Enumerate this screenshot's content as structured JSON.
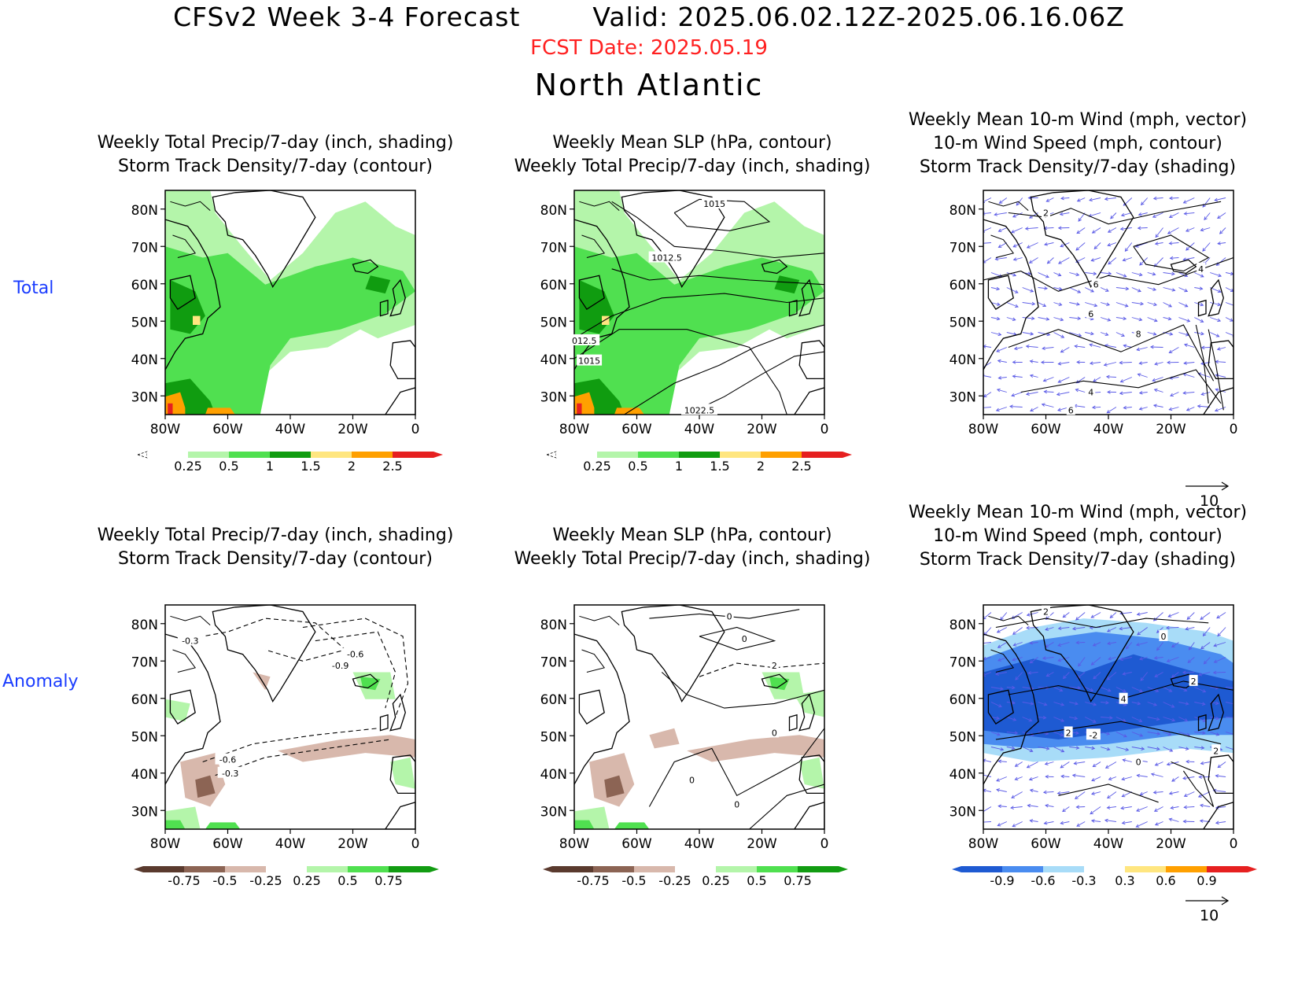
{
  "header": {
    "title": "CFSv2 Week 3-4 Forecast        Valid: 2025.06.02.12Z-2025.06.16.06Z",
    "fcst_date": "FCST Date: 2025.05.19",
    "region": "North Atlantic"
  },
  "row_labels": [
    "Total",
    "Anomaly"
  ],
  "lat_ticks": [
    "80N",
    "70N",
    "60N",
    "50N",
    "40N",
    "30N"
  ],
  "lon_ticks": [
    "80W",
    "60W",
    "40W",
    "20W",
    "0"
  ],
  "panels": [
    {
      "id": "p1",
      "title": [
        "Weekly Total Precip/7-day (inch, shading)",
        "Storm Track Density/7-day (contour)"
      ]
    },
    {
      "id": "p2",
      "title": [
        "Weekly Mean SLP (hPa, contour)",
        "Weekly Total Precip/7-day (inch, shading)"
      ]
    },
    {
      "id": "p3",
      "title": [
        "Weekly Mean 10-m Wind (mph, vector)",
        "10-m Wind Speed (mph, contour)",
        "Storm Track Density/7-day (shading)"
      ]
    },
    {
      "id": "p4",
      "title": [
        "Weekly Total Precip/7-day (inch, shading)",
        "Storm Track Density/7-day (contour)"
      ]
    },
    {
      "id": "p5",
      "title": [
        "Weekly Mean SLP (hPa, contour)",
        "Weekly Total Precip/7-day (inch, shading)"
      ]
    },
    {
      "id": "p6",
      "title": [
        "Weekly Mean 10-m Wind (mph, vector)",
        "10-m Wind Speed (mph, contour)",
        "Storm Track Density/7-day (shading)"
      ]
    }
  ],
  "contour_labels": {
    "p2": [
      "1015",
      "1012.5",
      "012.5",
      "1015",
      "1022.5"
    ],
    "p3": [
      "2",
      "4",
      "6",
      "6",
      "8",
      "4",
      "6"
    ],
    "p4": [
      "-0.3",
      "-0.6",
      "-0.9",
      "-0.6",
      "-0.3"
    ],
    "p5": [
      "0",
      "0",
      "2",
      "0",
      "0",
      "0"
    ],
    "p6": [
      "2",
      "0",
      "2",
      "4",
      "2",
      "-2",
      "0",
      "2"
    ]
  },
  "colorbars": {
    "precip_total": {
      "labels": [
        "0.25",
        "0.5",
        "1",
        "1.5",
        "2",
        "2.5"
      ],
      "colors": [
        "#ffffff",
        "#b4f5aa",
        "#50e050",
        "#109c10",
        "#ffe680",
        "#ffa000",
        "#e62020"
      ]
    },
    "precip_anom": {
      "labels": [
        "-0.75",
        "-0.5",
        "-0.25",
        "0.25",
        "0.5",
        "0.75"
      ],
      "colors": [
        "#5a3a2e",
        "#8c6454",
        "#d8b8ac",
        "#ffffff",
        "#b4f5aa",
        "#50e050",
        "#129c12"
      ]
    },
    "density_anom": {
      "labels": [
        "-0.9",
        "-0.6",
        "-0.3",
        "0.3",
        "0.6",
        "0.9"
      ],
      "colors": [
        "#1e5ad2",
        "#4a8cf0",
        "#a8dcf8",
        "#ffffff",
        "#ffe680",
        "#ffa000",
        "#e62020"
      ]
    }
  },
  "vector_legend": {
    "value": "10"
  }
}
